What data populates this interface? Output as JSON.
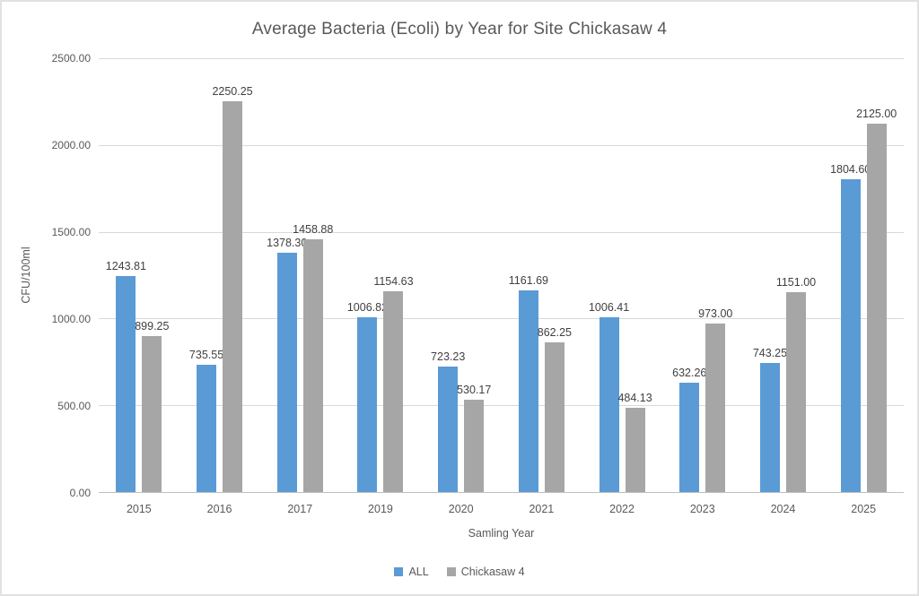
{
  "title": "Average Bacteria (Ecoli) by Year for Site Chickasaw 4",
  "chart_data": {
    "type": "bar",
    "title": "Average Bacteria (Ecoli) by Year for Site Chickasaw 4",
    "xlabel": "Samling Year",
    "ylabel": "CFU/100ml",
    "categories": [
      "2015",
      "2016",
      "2017",
      "2019",
      "2020",
      "2021",
      "2022",
      "2023",
      "2024",
      "2025"
    ],
    "series": [
      {
        "name": "ALL",
        "color": "#5B9BD5",
        "values": [
          1243.81,
          735.55,
          1378.3,
          1006.82,
          723.23,
          1161.69,
          1006.41,
          632.26,
          743.25,
          1804.6
        ]
      },
      {
        "name": "Chickasaw 4",
        "color": "#A6A6A6",
        "values": [
          899.25,
          2250.25,
          1458.88,
          1154.63,
          530.17,
          862.25,
          484.13,
          973.0,
          1151.0,
          2125.0
        ]
      }
    ],
    "ylim": [
      0,
      2500
    ],
    "ytick_step": 500,
    "ytick_labels": [
      "0.00",
      "500.00",
      "1000.00",
      "1500.00",
      "2000.00",
      "2500.00"
    ],
    "grid": true,
    "data_labels": true,
    "legend_position": "bottom-center"
  },
  "colors": {
    "series_all": "#5B9BD5",
    "series_chickasaw": "#A6A6A6",
    "grid_line": "#D9D9D9",
    "axis_line": "#BFBFBF",
    "title_text": "#595959",
    "axis_text": "#595959",
    "data_label_text": "#404040",
    "border": "#E2E2E2",
    "background": "#FFFFFF"
  },
  "legend": {
    "items": [
      {
        "label": "ALL",
        "color": "#5B9BD5"
      },
      {
        "label": "Chickasaw 4",
        "color": "#A6A6A6"
      }
    ]
  }
}
